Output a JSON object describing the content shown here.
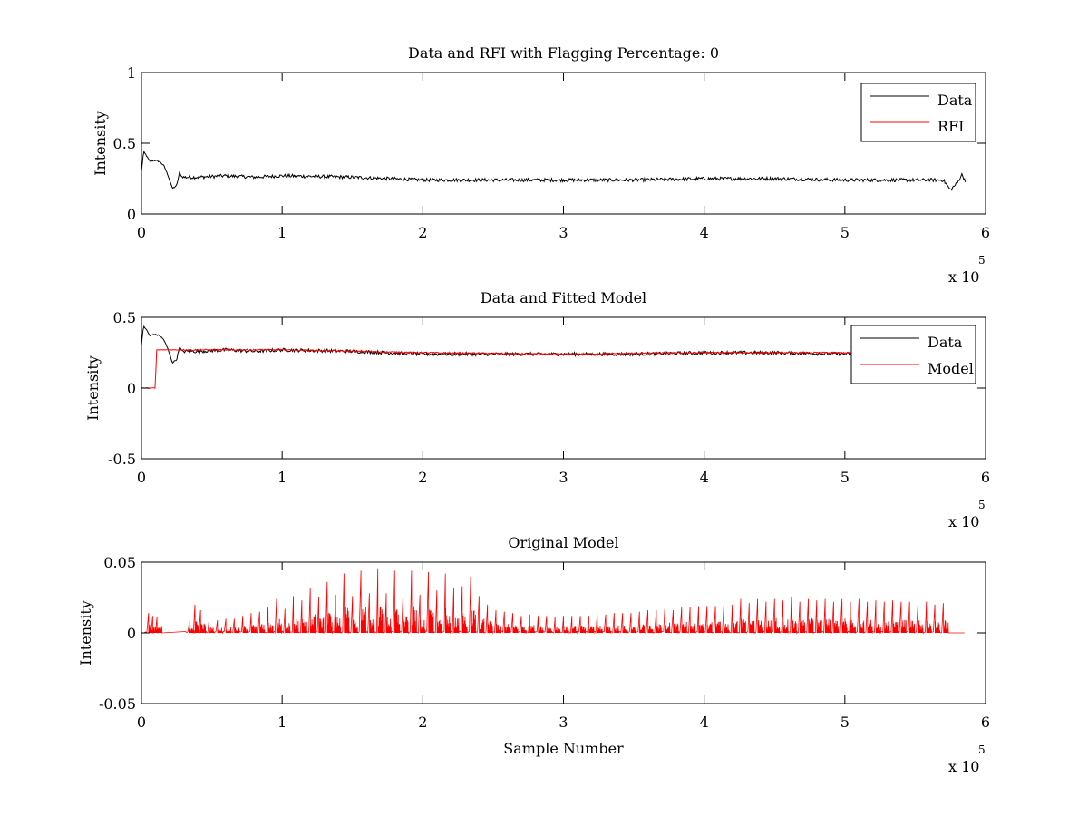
{
  "colors": {
    "data": "#000000",
    "model": "#ff0000",
    "axes": "#000000",
    "background": "#ffffff"
  },
  "chart_data": [
    {
      "type": "line",
      "title": "Data and RFI with Flagging Percentage: 0",
      "xlabel": "",
      "ylabel": "Intensity",
      "xlim": [
        0,
        600000
      ],
      "ylim": [
        0,
        1
      ],
      "xticks": [
        "0",
        "1",
        "2",
        "3",
        "4",
        "5",
        "6"
      ],
      "yticks": [
        "0",
        "0.5",
        "1"
      ],
      "x_exponent_label": "x 10",
      "x_exponent_power": "5",
      "legend_position": "top-right",
      "series": [
        {
          "name": "Data",
          "color": "#000000",
          "points": [
            [
              0,
              0.3
            ],
            [
              1500,
              0.44
            ],
            [
              3000,
              0.42
            ],
            [
              6000,
              0.37
            ],
            [
              9000,
              0.38
            ],
            [
              13000,
              0.37
            ],
            [
              16000,
              0.34
            ],
            [
              19000,
              0.27
            ],
            [
              22000,
              0.18
            ],
            [
              25000,
              0.2
            ],
            [
              27000,
              0.29
            ],
            [
              29000,
              0.26
            ],
            [
              40000,
              0.26
            ],
            [
              60000,
              0.27
            ],
            [
              80000,
              0.26
            ],
            [
              100000,
              0.27
            ],
            [
              150000,
              0.26
            ],
            [
              200000,
              0.24
            ],
            [
              250000,
              0.24
            ],
            [
              300000,
              0.24
            ],
            [
              350000,
              0.24
            ],
            [
              400000,
              0.25
            ],
            [
              450000,
              0.25
            ],
            [
              500000,
              0.24
            ],
            [
              540000,
              0.24
            ],
            [
              570000,
              0.24
            ],
            [
              575000,
              0.17
            ],
            [
              580000,
              0.22
            ],
            [
              583000,
              0.28
            ],
            [
              586000,
              0.23
            ]
          ],
          "noise_amplitude": 0.012
        },
        {
          "name": "RFI",
          "color": "#ff0000",
          "points": []
        }
      ]
    },
    {
      "type": "line",
      "title": "Data and Fitted Model",
      "xlabel": "",
      "ylabel": "Intensity",
      "xlim": [
        0,
        600000
      ],
      "ylim": [
        -0.5,
        0.5
      ],
      "xticks": [
        "0",
        "1",
        "2",
        "3",
        "4",
        "5",
        "6"
      ],
      "yticks": [
        "-0.5",
        "0",
        "0.5"
      ],
      "x_exponent_label": "x 10",
      "x_exponent_power": "5",
      "legend_position": "top-right",
      "series": [
        {
          "name": "Data",
          "color": "#000000",
          "points": [
            [
              0,
              0.3
            ],
            [
              1500,
              0.44
            ],
            [
              3000,
              0.42
            ],
            [
              6000,
              0.37
            ],
            [
              9000,
              0.38
            ],
            [
              13000,
              0.37
            ],
            [
              16000,
              0.34
            ],
            [
              19000,
              0.27
            ],
            [
              22000,
              0.18
            ],
            [
              25000,
              0.2
            ],
            [
              27000,
              0.29
            ],
            [
              29000,
              0.26
            ],
            [
              40000,
              0.26
            ],
            [
              60000,
              0.27
            ],
            [
              80000,
              0.26
            ],
            [
              100000,
              0.27
            ],
            [
              150000,
              0.26
            ],
            [
              200000,
              0.24
            ],
            [
              250000,
              0.24
            ],
            [
              300000,
              0.24
            ],
            [
              350000,
              0.24
            ],
            [
              400000,
              0.25
            ],
            [
              450000,
              0.25
            ],
            [
              500000,
              0.24
            ],
            [
              540000,
              0.24
            ],
            [
              570000,
              0.24
            ],
            [
              575000,
              0.17
            ],
            [
              580000,
              0.22
            ],
            [
              583000,
              0.28
            ],
            [
              586000,
              0.23
            ]
          ],
          "noise_amplitude": 0.012
        },
        {
          "name": "Model",
          "color": "#ff0000",
          "points": [
            [
              0,
              0.0
            ],
            [
              10000,
              0.0
            ],
            [
              10500,
              0.27
            ],
            [
              20000,
              0.27
            ],
            [
              100000,
              0.27
            ],
            [
              200000,
              0.25
            ],
            [
              300000,
              0.24
            ],
            [
              400000,
              0.25
            ],
            [
              500000,
              0.25
            ],
            [
              586000,
              0.25
            ]
          ],
          "noise_amplitude": 0.005
        }
      ]
    },
    {
      "type": "line",
      "title": "Original Model",
      "xlabel": "Sample Number",
      "ylabel": "Intensity",
      "xlim": [
        0,
        600000
      ],
      "ylim": [
        -0.05,
        0.05
      ],
      "xticks": [
        "0",
        "1",
        "2",
        "3",
        "4",
        "5",
        "6"
      ],
      "yticks": [
        "-0.05",
        "0",
        "0.05"
      ],
      "x_exponent_label": "x 10",
      "x_exponent_power": "5",
      "series": [
        {
          "color": "#ff0000",
          "baseline": 0,
          "x_range": [
            2000,
            585000
          ],
          "spikes": [
            [
              5000,
              0.014
            ],
            [
              8000,
              0.012
            ],
            [
              11000,
              0.011
            ],
            [
              34000,
              0.008
            ],
            [
              38000,
              0.02
            ],
            [
              42000,
              0.016
            ],
            [
              48000,
              0.009
            ],
            [
              54000,
              0.009
            ],
            [
              60000,
              0.01
            ],
            [
              66000,
              0.01
            ],
            [
              72000,
              0.012
            ],
            [
              78000,
              0.014
            ],
            [
              84000,
              0.015
            ],
            [
              90000,
              0.018
            ],
            [
              96000,
              0.024
            ],
            [
              102000,
              0.017
            ],
            [
              108000,
              0.026
            ],
            [
              114000,
              0.023
            ],
            [
              120000,
              0.032
            ],
            [
              126000,
              0.025
            ],
            [
              132000,
              0.036
            ],
            [
              138000,
              0.027
            ],
            [
              144000,
              0.042
            ],
            [
              150000,
              0.026
            ],
            [
              156000,
              0.044
            ],
            [
              162000,
              0.028
            ],
            [
              168000,
              0.045
            ],
            [
              174000,
              0.028
            ],
            [
              180000,
              0.044
            ],
            [
              186000,
              0.028
            ],
            [
              192000,
              0.044
            ],
            [
              198000,
              0.027
            ],
            [
              204000,
              0.043
            ],
            [
              210000,
              0.03
            ],
            [
              216000,
              0.042
            ],
            [
              222000,
              0.032
            ],
            [
              228000,
              0.033
            ],
            [
              234000,
              0.04
            ],
            [
              240000,
              0.026
            ],
            [
              246000,
              0.02
            ],
            [
              252000,
              0.016
            ],
            [
              258000,
              0.015
            ],
            [
              264000,
              0.014
            ],
            [
              270000,
              0.012
            ],
            [
              276000,
              0.013
            ],
            [
              282000,
              0.012
            ],
            [
              288000,
              0.012
            ],
            [
              294000,
              0.011
            ],
            [
              300000,
              0.012
            ],
            [
              306000,
              0.012
            ],
            [
              312000,
              0.012
            ],
            [
              318000,
              0.012
            ],
            [
              324000,
              0.013
            ],
            [
              330000,
              0.013
            ],
            [
              336000,
              0.014
            ],
            [
              342000,
              0.014
            ],
            [
              348000,
              0.014
            ],
            [
              354000,
              0.015
            ],
            [
              360000,
              0.016
            ],
            [
              366000,
              0.016
            ],
            [
              372000,
              0.017
            ],
            [
              378000,
              0.016
            ],
            [
              384000,
              0.018
            ],
            [
              390000,
              0.018
            ],
            [
              396000,
              0.019
            ],
            [
              402000,
              0.019
            ],
            [
              408000,
              0.019
            ],
            [
              414000,
              0.02
            ],
            [
              420000,
              0.02
            ],
            [
              426000,
              0.024
            ],
            [
              432000,
              0.021
            ],
            [
              438000,
              0.024
            ],
            [
              444000,
              0.022
            ],
            [
              450000,
              0.024
            ],
            [
              456000,
              0.023
            ],
            [
              462000,
              0.025
            ],
            [
              468000,
              0.022
            ],
            [
              474000,
              0.024
            ],
            [
              480000,
              0.023
            ],
            [
              486000,
              0.024
            ],
            [
              492000,
              0.022
            ],
            [
              498000,
              0.024
            ],
            [
              504000,
              0.022
            ],
            [
              510000,
              0.024
            ],
            [
              516000,
              0.022
            ],
            [
              522000,
              0.023
            ],
            [
              528000,
              0.022
            ],
            [
              534000,
              0.023
            ],
            [
              540000,
              0.022
            ],
            [
              546000,
              0.022
            ],
            [
              552000,
              0.021
            ],
            [
              558000,
              0.022
            ],
            [
              564000,
              0.02
            ],
            [
              570000,
              0.021
            ]
          ]
        }
      ]
    }
  ]
}
